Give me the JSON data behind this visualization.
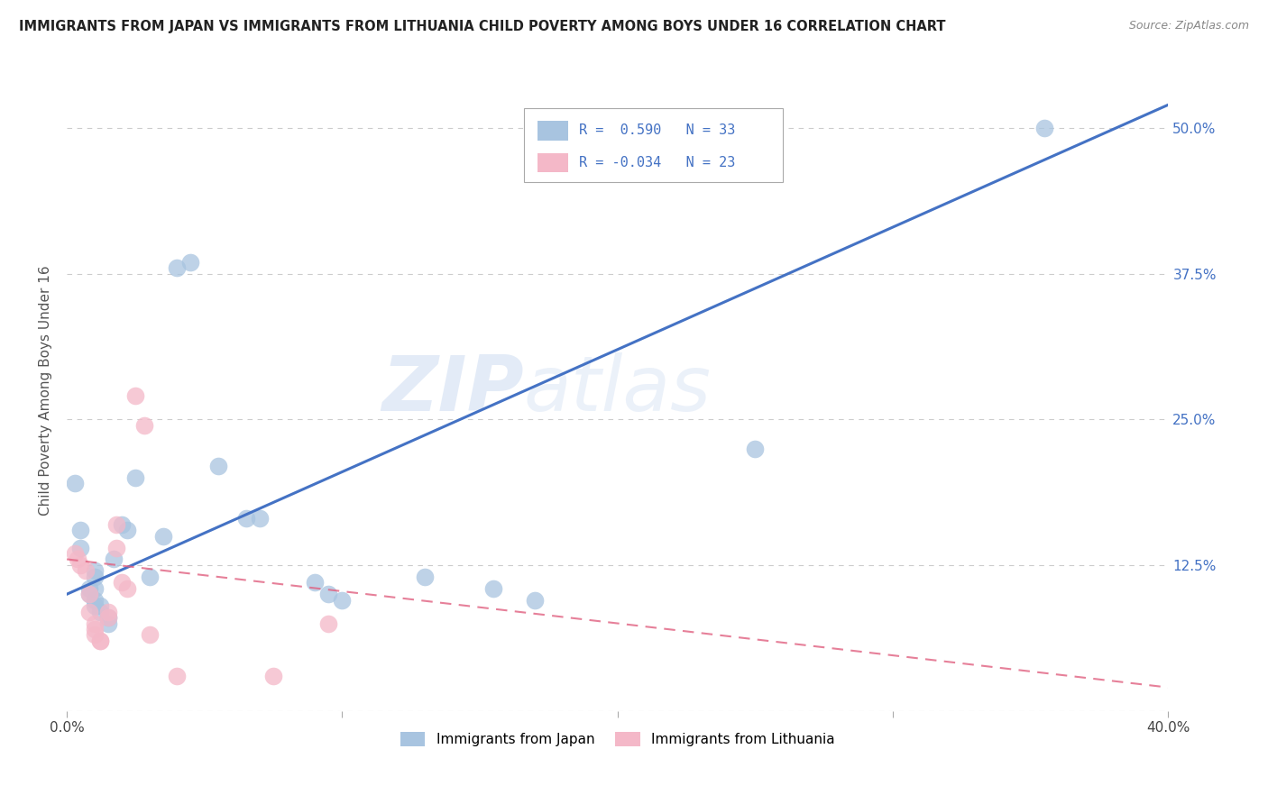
{
  "title": "IMMIGRANTS FROM JAPAN VS IMMIGRANTS FROM LITHUANIA CHILD POVERTY AMONG BOYS UNDER 16 CORRELATION CHART",
  "source": "Source: ZipAtlas.com",
  "ylabel": "Child Poverty Among Boys Under 16",
  "xlim": [
    0.0,
    0.4
  ],
  "ylim": [
    0.0,
    0.55
  ],
  "x_ticks": [
    0.0,
    0.1,
    0.2,
    0.3,
    0.4
  ],
  "x_tick_labels": [
    "0.0%",
    "",
    "",
    "",
    "40.0%"
  ],
  "y_ticks": [
    0.0,
    0.125,
    0.25,
    0.375,
    0.5
  ],
  "y_tick_labels_right": [
    "",
    "12.5%",
    "25.0%",
    "37.5%",
    "50.0%"
  ],
  "japan_R": 0.59,
  "japan_N": 33,
  "lithuania_R": -0.034,
  "lithuania_N": 23,
  "japan_color": "#a8c4e0",
  "japan_line_color": "#4472c4",
  "lithuania_color": "#f4b8c8",
  "lithuania_line_color": "#e06080",
  "watermark_zip": "ZIP",
  "watermark_atlas": "atlas",
  "japan_line_x0": 0.0,
  "japan_line_y0": 0.1,
  "japan_line_x1": 0.4,
  "japan_line_y1": 0.52,
  "lithuania_line_x0": 0.0,
  "lithuania_line_y0": 0.13,
  "lithuania_line_x1": 0.4,
  "lithuania_line_y1": 0.02,
  "japan_x": [
    0.003,
    0.005,
    0.005,
    0.008,
    0.008,
    0.01,
    0.01,
    0.01,
    0.01,
    0.01,
    0.012,
    0.012,
    0.015,
    0.015,
    0.017,
    0.02,
    0.022,
    0.025,
    0.03,
    0.035,
    0.04,
    0.045,
    0.055,
    0.065,
    0.07,
    0.09,
    0.095,
    0.1,
    0.13,
    0.155,
    0.17,
    0.25,
    0.355
  ],
  "japan_y": [
    0.195,
    0.155,
    0.14,
    0.105,
    0.1,
    0.12,
    0.115,
    0.105,
    0.095,
    0.09,
    0.09,
    0.085,
    0.08,
    0.075,
    0.13,
    0.16,
    0.155,
    0.2,
    0.115,
    0.15,
    0.38,
    0.385,
    0.21,
    0.165,
    0.165,
    0.11,
    0.1,
    0.095,
    0.115,
    0.105,
    0.095,
    0.225,
    0.5
  ],
  "lithuania_x": [
    0.003,
    0.004,
    0.005,
    0.007,
    0.008,
    0.008,
    0.01,
    0.01,
    0.01,
    0.012,
    0.012,
    0.015,
    0.015,
    0.018,
    0.018,
    0.02,
    0.022,
    0.025,
    0.028,
    0.03,
    0.04,
    0.075,
    0.095
  ],
  "lithuania_y": [
    0.135,
    0.13,
    0.125,
    0.12,
    0.1,
    0.085,
    0.075,
    0.07,
    0.065,
    0.06,
    0.06,
    0.085,
    0.08,
    0.16,
    0.14,
    0.11,
    0.105,
    0.27,
    0.245,
    0.065,
    0.03,
    0.03,
    0.075
  ]
}
